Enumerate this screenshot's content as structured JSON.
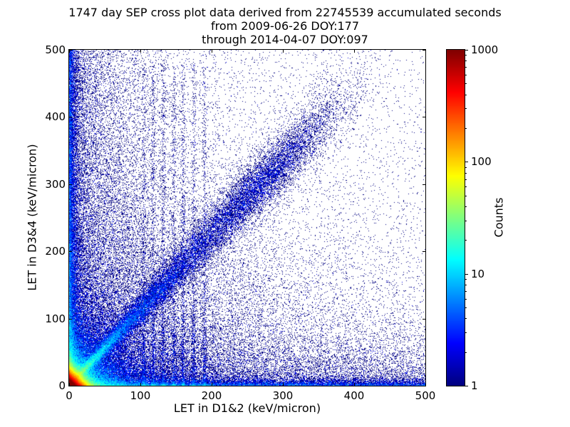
{
  "chart_data": {
    "type": "heatmap",
    "title": "1747 day SEP cross plot data derived from 22745539 accumulated seconds",
    "subtitle1": "from 2009-06-26 DOY:177",
    "subtitle2": "through 2014-04-07 DOY:097",
    "xlabel": "LET in D1&2 (keV/micron)",
    "ylabel": "LET in D3&4 (keV/micron)",
    "xlim": [
      0,
      500
    ],
    "ylim": [
      0,
      500
    ],
    "xticks": [
      0,
      100,
      200,
      300,
      400,
      500
    ],
    "yticks": [
      0,
      100,
      200,
      300,
      400,
      500
    ],
    "grid": false,
    "legend": "none",
    "colorbar": {
      "label": "Counts",
      "scale": "log",
      "range": [
        1,
        1000
      ],
      "ticks": [
        1,
        10,
        100,
        1000
      ],
      "colormap": "jet"
    },
    "description": "2D log-count histogram (cross plot) of coincident linear energy transfer measured in detector pair D1&2 versus detector pair D3&4; single events render dark blue, saturated core renders dark red.",
    "features": [
      "intense red/orange core at LET below ~15 keV/micron in both detector pairs",
      "bright cyan-green count enhancements hugging both axes near the origin",
      "diagonal coincidence band along y ~ 1.12x with a denser blue cluster near (270, 300)",
      "faint vertical instrument streaks between x~105 and x~190 at low y",
      "sparse single-count dark-blue events scattered over the full plane, denser toward the left edge and bottom edge"
    ],
    "density_model": {
      "seed": 20140407,
      "slope": 1.12,
      "components": [
        {
          "name": "hot-core",
          "type": "exp2d",
          "sx": 6,
          "sy": 6,
          "n": 160000
        },
        {
          "name": "core-halo",
          "type": "exp2d",
          "sx": 25,
          "sy": 25,
          "n": 30000
        },
        {
          "name": "lower-left-haze",
          "type": "exp2d",
          "sx": 110,
          "sy": 110,
          "n": 18000
        },
        {
          "name": "wide-haze",
          "type": "exp2d",
          "sx": 170,
          "sy": 170,
          "n": 15000
        },
        {
          "name": "left-column-haze",
          "type": "edge_v",
          "sx": 50,
          "pow": 1.0,
          "n": 10000
        },
        {
          "name": "left-edge-band",
          "type": "edge_v",
          "sx": 5,
          "pow": 1.6,
          "n": 14000
        },
        {
          "name": "bottom-row-haze",
          "type": "edge_h",
          "sy": 35,
          "pow": 1.0,
          "n": 8000
        },
        {
          "name": "bottom-edge-band",
          "type": "edge_h",
          "sy": 4,
          "pow": 1.6,
          "n": 12000
        },
        {
          "name": "diagonal-band",
          "type": "diag",
          "t_scale": 120,
          "t_max": 400,
          "s0": 2,
          "rate": 0.06,
          "n": 25000
        },
        {
          "name": "diagonal-blob",
          "type": "diag_blob",
          "mean": 270,
          "sigma": 45,
          "spread": 14,
          "n": 6000
        },
        {
          "name": "vertical-streaks",
          "type": "streaks",
          "xs": [
            105,
            118,
            132,
            147,
            160,
            175,
            190
          ],
          "ymax": 480,
          "pow": 2.2,
          "jitter": 1.5,
          "n": 5000
        },
        {
          "name": "background",
          "type": "uniform",
          "n": 4000
        }
      ]
    }
  },
  "colors": {
    "frame": "#000000",
    "background": "#ffffff",
    "single_count": "#00007f",
    "max_count": "#7f0000"
  }
}
